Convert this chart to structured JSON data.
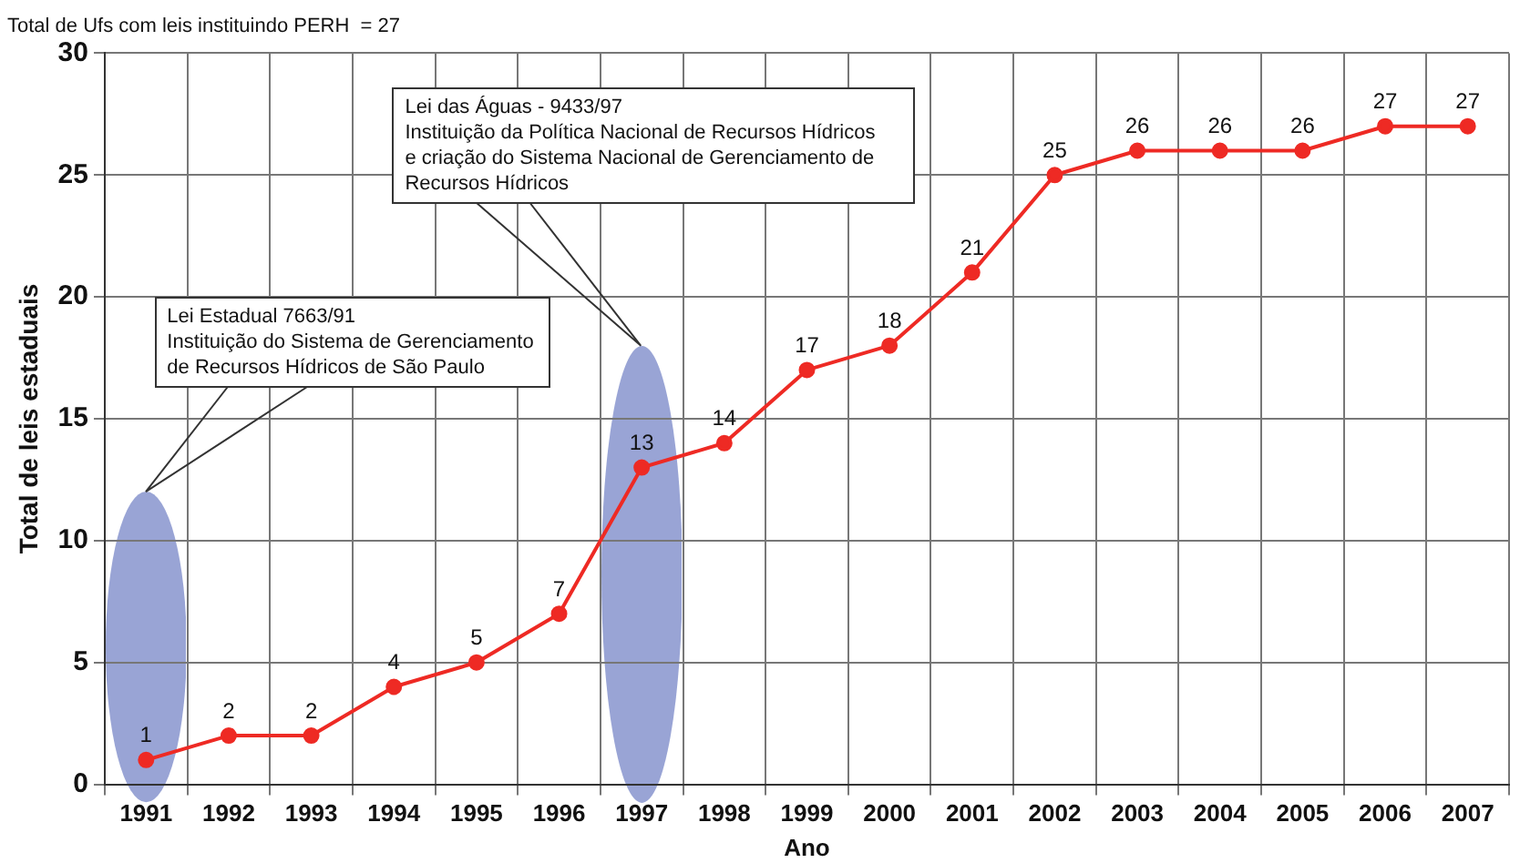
{
  "chart_data": {
    "type": "line",
    "title": "Total de Ufs com leis instituindo PERH  = 27",
    "xlabel": "Ano",
    "ylabel": "Total de leis estaduais",
    "categories": [
      "1991",
      "1992",
      "1993",
      "1994",
      "1995",
      "1996",
      "1997",
      "1998",
      "1999",
      "2000",
      "2001",
      "2002",
      "2003",
      "2004",
      "2005",
      "2006",
      "2007"
    ],
    "series": [
      {
        "color": "#ee2a24",
        "values": [
          1,
          2,
          2,
          4,
          5,
          7,
          13,
          14,
          17,
          18,
          21,
          25,
          26,
          26,
          26,
          27,
          27
        ]
      }
    ],
    "ylim": [
      0,
      30
    ],
    "yticks": [
      0,
      5,
      10,
      15,
      20,
      25,
      30
    ],
    "grid": true,
    "legend": false,
    "marker": "circle",
    "line_style": "solid",
    "data_labels": true,
    "annotations": [
      "Lei Estadual 7663/91\nInstituição do Sistema de Gerenciamento\nde Recursos Hídricos de São Paulo",
      "Lei das Águas - 9433/97\nInstituição da Política Nacional de Recursos Hídricos\ne criação do Sistema Nacional de Gerenciamento de\nRecursos Hídricos"
    ]
  }
}
